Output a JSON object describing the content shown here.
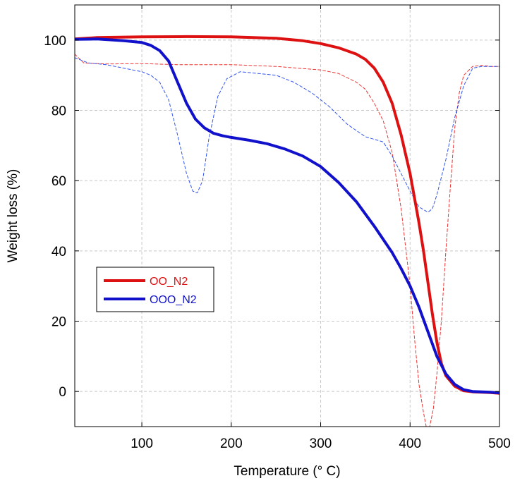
{
  "chart_data": {
    "type": "line",
    "title": "",
    "xlabel": "Temperature (° C)",
    "ylabel": "Weight loss (%)",
    "xlim": [
      25,
      500
    ],
    "ylim": [
      -10,
      110
    ],
    "xticks": [
      100,
      200,
      300,
      400,
      500
    ],
    "yticks": [
      0,
      20,
      40,
      60,
      80,
      100
    ],
    "grid": true,
    "legend_position": "center-left",
    "series": [
      {
        "name": "OO_N2",
        "color": "#dd1111",
        "style": "solid",
        "points": [
          [
            25,
            100.3
          ],
          [
            50,
            100.7
          ],
          [
            100,
            100.9
          ],
          [
            150,
            101.0
          ],
          [
            200,
            100.9
          ],
          [
            250,
            100.5
          ],
          [
            280,
            99.8
          ],
          [
            300,
            99.0
          ],
          [
            320,
            97.8
          ],
          [
            340,
            96.0
          ],
          [
            350,
            94.5
          ],
          [
            360,
            92.0
          ],
          [
            370,
            88.0
          ],
          [
            380,
            82.0
          ],
          [
            390,
            73.0
          ],
          [
            400,
            62.0
          ],
          [
            410,
            48.0
          ],
          [
            415,
            40.0
          ],
          [
            420,
            31.0
          ],
          [
            425,
            22.0
          ],
          [
            430,
            14.0
          ],
          [
            435,
            8.0
          ],
          [
            440,
            4.5
          ],
          [
            450,
            1.5
          ],
          [
            460,
            0.2
          ],
          [
            470,
            -0.1
          ],
          [
            480,
            -0.2
          ],
          [
            490,
            -0.3
          ],
          [
            500,
            -0.5
          ]
        ]
      },
      {
        "name": "OOO_N2",
        "color": "#1111cc",
        "style": "solid",
        "points": [
          [
            25,
            100.2
          ],
          [
            50,
            100.3
          ],
          [
            80,
            99.8
          ],
          [
            100,
            99.3
          ],
          [
            110,
            98.5
          ],
          [
            120,
            97.0
          ],
          [
            130,
            94.0
          ],
          [
            140,
            88.0
          ],
          [
            150,
            82.0
          ],
          [
            160,
            77.5
          ],
          [
            170,
            75.0
          ],
          [
            180,
            73.5
          ],
          [
            190,
            72.8
          ],
          [
            200,
            72.3
          ],
          [
            220,
            71.5
          ],
          [
            240,
            70.5
          ],
          [
            260,
            69.0
          ],
          [
            280,
            67.0
          ],
          [
            300,
            64.0
          ],
          [
            320,
            59.5
          ],
          [
            340,
            54.0
          ],
          [
            360,
            47.0
          ],
          [
            380,
            39.5
          ],
          [
            390,
            35.0
          ],
          [
            400,
            30.0
          ],
          [
            410,
            24.0
          ],
          [
            420,
            17.0
          ],
          [
            430,
            10.0
          ],
          [
            440,
            5.0
          ],
          [
            450,
            2.0
          ],
          [
            460,
            0.5
          ],
          [
            470,
            0.0
          ],
          [
            480,
            -0.1
          ],
          [
            490,
            -0.2
          ],
          [
            500,
            -0.4
          ]
        ]
      },
      {
        "name": "",
        "color": "#ee3333",
        "style": "dashed",
        "points": [
          [
            25,
            96.0
          ],
          [
            35,
            93.5
          ],
          [
            60,
            93.2
          ],
          [
            100,
            93.3
          ],
          [
            140,
            93.0
          ],
          [
            200,
            93.0
          ],
          [
            250,
            92.5
          ],
          [
            300,
            91.5
          ],
          [
            320,
            90.5
          ],
          [
            340,
            88.0
          ],
          [
            350,
            86.0
          ],
          [
            360,
            82.0
          ],
          [
            370,
            77.0
          ],
          [
            380,
            68.0
          ],
          [
            390,
            52.0
          ],
          [
            400,
            30.0
          ],
          [
            405,
            15.0
          ],
          [
            410,
            2.0
          ],
          [
            415,
            -6.0
          ],
          [
            418,
            -10.0
          ],
          [
            422,
            -10.0
          ],
          [
            426,
            -5.0
          ],
          [
            430,
            5.0
          ],
          [
            435,
            20.0
          ],
          [
            440,
            40.0
          ],
          [
            445,
            58.0
          ],
          [
            450,
            75.0
          ],
          [
            455,
            85.0
          ],
          [
            460,
            90.0
          ],
          [
            470,
            92.5
          ],
          [
            480,
            92.8
          ],
          [
            490,
            92.5
          ],
          [
            500,
            92.5
          ]
        ]
      },
      {
        "name": "",
        "color": "#3355ee",
        "style": "dashed",
        "points": [
          [
            25,
            95.0
          ],
          [
            40,
            93.5
          ],
          [
            60,
            93.0
          ],
          [
            80,
            92.0
          ],
          [
            100,
            91.0
          ],
          [
            110,
            90.0
          ],
          [
            120,
            88.0
          ],
          [
            130,
            83.0
          ],
          [
            140,
            73.0
          ],
          [
            150,
            62.0
          ],
          [
            157,
            57.0
          ],
          [
            162,
            56.5
          ],
          [
            168,
            60.0
          ],
          [
            175,
            72.0
          ],
          [
            185,
            84.0
          ],
          [
            195,
            89.0
          ],
          [
            210,
            91.0
          ],
          [
            230,
            90.5
          ],
          [
            250,
            90.0
          ],
          [
            270,
            88.0
          ],
          [
            290,
            85.0
          ],
          [
            310,
            81.0
          ],
          [
            330,
            76.0
          ],
          [
            350,
            72.5
          ],
          [
            370,
            71.0
          ],
          [
            380,
            67.0
          ],
          [
            390,
            62.0
          ],
          [
            400,
            57.0
          ],
          [
            410,
            52.5
          ],
          [
            420,
            51.0
          ],
          [
            425,
            52.0
          ],
          [
            430,
            56.0
          ],
          [
            440,
            66.0
          ],
          [
            450,
            78.0
          ],
          [
            460,
            87.0
          ],
          [
            470,
            92.0
          ],
          [
            480,
            92.5
          ],
          [
            490,
            92.5
          ],
          [
            500,
            92.5
          ]
        ]
      }
    ]
  }
}
